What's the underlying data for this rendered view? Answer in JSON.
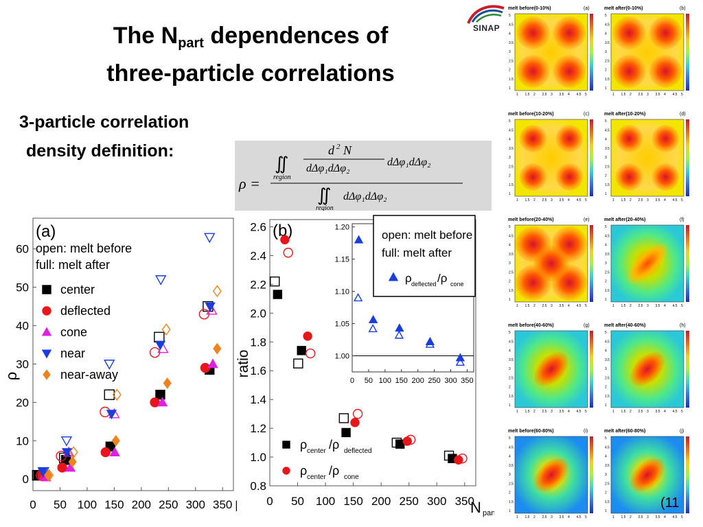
{
  "slide": {
    "title_pre": "The N",
    "title_sub": "part",
    "title_post": " dependences of",
    "title_line2": "three-particle correlations",
    "def_line1": "3-particle correlation",
    "def_line2": "density definition:",
    "logo_text": "SINAP",
    "footnote": "(11"
  },
  "formula": {
    "rho": "ρ =",
    "numer_top": "d",
    "numer_top_sup": "2",
    "numer_top_N": "N",
    "numer_bottom": "dΔφ₁dΔφ₂",
    "numer_tail": "dΔφ₁dΔφ₂",
    "region": "region",
    "denom": "dΔφ₁dΔφ₂",
    "integral": "∬"
  },
  "chart_data": [
    {
      "id": "a",
      "type": "scatter",
      "panel_label": "(a)",
      "xlabel": "N",
      "xlabel_sub": "part",
      "ylabel": "ρ",
      "xlim": [
        0,
        370
      ],
      "ylim": [
        -3,
        68
      ],
      "xticks": [
        0,
        50,
        100,
        150,
        200,
        250,
        300,
        350
      ],
      "yticks": [
        0,
        10,
        20,
        30,
        40,
        50,
        60
      ],
      "legend_header": [
        "open: melt before",
        "full: melt after"
      ],
      "series": [
        {
          "name": "center",
          "marker": "square",
          "color": "#000000",
          "open": [
            [
              8,
              1
            ],
            [
              58,
              5.5
            ],
            [
              141,
              22
            ],
            [
              233,
              37
            ],
            [
              323,
              45
            ]
          ],
          "full": [
            [
              10,
              1
            ],
            [
              61,
              5
            ],
            [
              143,
              8.5
            ],
            [
              235,
              22
            ],
            [
              326,
              28.5
            ]
          ]
        },
        {
          "name": "deflected",
          "marker": "circle",
          "color": "#e8161b",
          "open": [
            [
              15,
              1
            ],
            [
              52,
              6
            ],
            [
              133,
              17.5
            ],
            [
              225,
              33
            ],
            [
              316,
              43
            ]
          ],
          "full": [
            [
              17,
              1
            ],
            [
              54,
              3
            ],
            [
              134,
              7
            ],
            [
              225,
              20
            ],
            [
              318,
              29
            ]
          ]
        },
        {
          "name": "cone",
          "marker": "triangle",
          "color": "#e020e0",
          "open": [
            [
              22,
              1
            ],
            [
              66,
              7
            ],
            [
              150,
              17
            ],
            [
              240,
              34
            ],
            [
              330,
              44
            ]
          ],
          "full": [
            [
              24,
              0.5
            ],
            [
              69,
              3
            ],
            [
              151,
              7
            ],
            [
              239,
              20
            ],
            [
              332,
              30
            ]
          ]
        },
        {
          "name": "near",
          "marker": "triangle-down",
          "color": "#1a3de0",
          "open": [
            [
              20,
              2
            ],
            [
              62,
              10
            ],
            [
              141,
              30
            ],
            [
              236,
              52
            ],
            [
              326,
              63
            ]
          ],
          "full": [
            [
              18,
              2
            ],
            [
              63,
              7
            ],
            [
              145,
              17
            ],
            [
              235,
              35
            ],
            [
              327,
              45
            ]
          ]
        },
        {
          "name": "near-away",
          "marker": "diamond",
          "color": "#f0821e",
          "open": [
            [
              30,
              1
            ],
            [
              75,
              7
            ],
            [
              155,
              22
            ],
            [
              246,
              39
            ],
            [
              340,
              49
            ]
          ],
          "full": [
            [
              28,
              1
            ],
            [
              73,
              4.5
            ],
            [
              153,
              10
            ],
            [
              248,
              25
            ],
            [
              340,
              34
            ]
          ]
        }
      ]
    },
    {
      "id": "b",
      "type": "scatter",
      "panel_label": "(b)",
      "xlabel": "N",
      "xlabel_sub": "part",
      "ylabel": "ratio",
      "xlim": [
        0,
        370
      ],
      "ylim": [
        0.8,
        2.65
      ],
      "xticks": [
        0,
        50,
        100,
        150,
        200,
        250,
        300,
        350
      ],
      "yticks": [
        0.8,
        1.0,
        1.2,
        1.4,
        1.6,
        1.8,
        2.0,
        2.2,
        2.4,
        2.6
      ],
      "legend": [
        {
          "name_main": "ρ",
          "name_sub1": "center",
          "name_mid": "/ρ",
          "name_sub2": "deflected",
          "marker": "square"
        },
        {
          "name_main": "ρ",
          "name_sub1": "center",
          "name_mid": "/ρ",
          "name_sub2": "cone",
          "marker": "circle"
        }
      ],
      "series": [
        {
          "name": "center/deflected",
          "marker": "square",
          "color": "#000000",
          "open": [
            [
              9,
              2.22
            ],
            [
              51,
              1.65
            ],
            [
              133,
              1.27
            ],
            [
              228,
              1.1
            ],
            [
              322,
              1.01
            ]
          ],
          "full": [
            [
              14,
              2.13
            ],
            [
              57,
              1.74
            ],
            [
              137,
              1.17
            ],
            [
              234,
              1.09
            ],
            [
              328,
              0.99
            ]
          ]
        },
        {
          "name": "center/cone",
          "marker": "circle",
          "color": "#e8161b",
          "open": [
            [
              33,
              2.42
            ],
            [
              73,
              1.72
            ],
            [
              158,
              1.3
            ],
            [
              253,
              1.12
            ],
            [
              346,
              0.99
            ]
          ],
          "full": [
            [
              27,
              2.51
            ],
            [
              68,
              1.84
            ],
            [
              153,
              1.24
            ],
            [
              247,
              1.11
            ],
            [
              339,
              0.98
            ]
          ]
        }
      ]
    },
    {
      "id": "b-inset",
      "type": "scatter",
      "xlim": [
        0,
        370
      ],
      "ylim": [
        0.975,
        1.205
      ],
      "xticks": [
        0,
        50,
        100,
        150,
        200,
        250,
        300,
        350
      ],
      "yticks": [
        1.0,
        1.05,
        1.1,
        1.15,
        1.2
      ],
      "ytick_labels": [
        "1.00",
        "1.05",
        "1.10",
        "1.15",
        "1.20"
      ],
      "reference_line": 1.0,
      "legend_header": [
        "open: melt before",
        "full: melt after"
      ],
      "legend_name_main": "ρ",
      "legend_sub1": "deflected",
      "legend_mid": "/ρ",
      "legend_sub2": "cone",
      "series": [
        {
          "name": "deflected/cone",
          "marker": "triangle",
          "color": "#1a3de0",
          "open": [
            [
              18,
              1.09
            ],
            [
              63,
              1.042
            ],
            [
              143,
              1.032
            ],
            [
              237,
              1.018
            ],
            [
              329,
              0.99
            ]
          ],
          "full": [
            [
              20,
              1.18
            ],
            [
              64,
              1.056
            ],
            [
              144,
              1.043
            ],
            [
              237,
              1.022
            ],
            [
              329,
              0.997
            ]
          ]
        }
      ]
    }
  ],
  "heatmaps": {
    "titles": [
      "melt before(0-10%)",
      "melt after(0-10%)",
      "melt before(10-20%)",
      "melt after(10-20%)",
      "melt before(20-40%)",
      "melt after(20-40%)",
      "melt before(40-60%)",
      "melt after(40-60%)",
      "melt before(60-80%)",
      "melt after(60-80%)"
    ],
    "tags": [
      "(a)",
      "(b)",
      "(c)",
      "(d)",
      "(e)",
      "(f)",
      "(g)",
      "(h)",
      "(i)",
      "(j)"
    ],
    "patterns": [
      "corners-strong",
      "corners-strong",
      "corners-mid",
      "corners-mid",
      "cross-strong",
      "diag-mid",
      "center-mid",
      "center-mid",
      "center-weak",
      "center-weak"
    ],
    "axis_ticks": [
      "1",
      "1.5",
      "2",
      "2.5",
      "3",
      "3.5",
      "4",
      "4.5",
      "5"
    ]
  }
}
